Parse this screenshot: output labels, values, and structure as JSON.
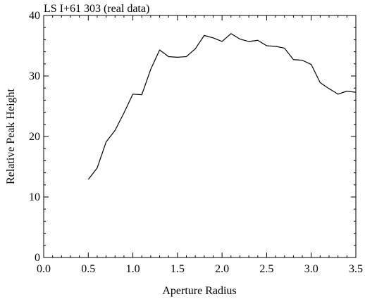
{
  "chart_data": {
    "type": "line",
    "title": "LS I+61 303 (real data)",
    "xlabel": "Aperture Radius",
    "ylabel": "Relative Peak Height",
    "xlim": [
      0.0,
      3.5
    ],
    "ylim": [
      0,
      40
    ],
    "xticks": [
      0.0,
      0.5,
      1.0,
      1.5,
      2.0,
      2.5,
      3.0,
      3.5
    ],
    "xtick_labels": [
      "0.0",
      "0.5",
      "1.0",
      "1.5",
      "2.0",
      "2.5",
      "3.0",
      "3.5"
    ],
    "yticks": [
      0,
      10,
      20,
      30,
      40
    ],
    "ytick_labels": [
      "0",
      "10",
      "20",
      "30",
      "40"
    ],
    "grid": false,
    "line_color": "#000000",
    "series": [
      {
        "x": [
          0.5,
          0.6,
          0.7,
          0.8,
          0.9,
          1.0,
          1.1,
          1.2,
          1.3,
          1.4,
          1.5,
          1.6,
          1.7,
          1.8,
          1.9,
          2.0,
          2.1,
          2.2,
          2.3,
          2.4,
          2.5,
          2.6,
          2.7,
          2.8,
          2.9,
          3.0,
          3.1,
          3.2,
          3.3,
          3.4,
          3.5
        ],
        "y": [
          12.9,
          14.8,
          19.1,
          21.0,
          23.9,
          27.0,
          26.9,
          31.1,
          34.3,
          33.2,
          33.1,
          33.2,
          34.5,
          36.7,
          36.3,
          35.7,
          37.0,
          36.1,
          35.7,
          35.9,
          35.0,
          34.9,
          34.6,
          32.7,
          32.6,
          31.9,
          28.9,
          27.9,
          27.0,
          27.5,
          27.3
        ]
      }
    ]
  }
}
